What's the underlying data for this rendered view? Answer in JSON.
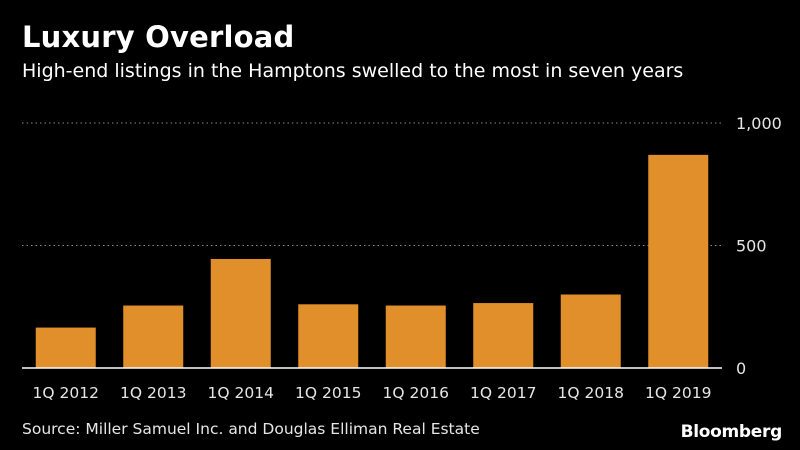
{
  "chart_data": {
    "type": "bar",
    "title": "Luxury Overload",
    "subtitle": "High-end listings in the Hamptons swelled to the most in seven years",
    "categories": [
      "1Q 2012",
      "1Q 2013",
      "1Q 2014",
      "1Q 2015",
      "1Q 2016",
      "1Q 2017",
      "1Q 2018",
      "1Q 2019"
    ],
    "values": [
      165,
      255,
      445,
      260,
      255,
      265,
      300,
      870
    ],
    "ylim": [
      0,
      1000
    ],
    "yticks": [
      0,
      500,
      1000
    ],
    "ytick_labels": [
      "0",
      "500",
      "1,000"
    ],
    "xlabel": "",
    "ylabel": "",
    "grid": "dotted horizontal",
    "legend": "none",
    "bar_color": "#e08f2a",
    "source": "Source: Miller Samuel Inc. and Douglas Elliman Real Estate"
  },
  "brand": "Bloomberg"
}
